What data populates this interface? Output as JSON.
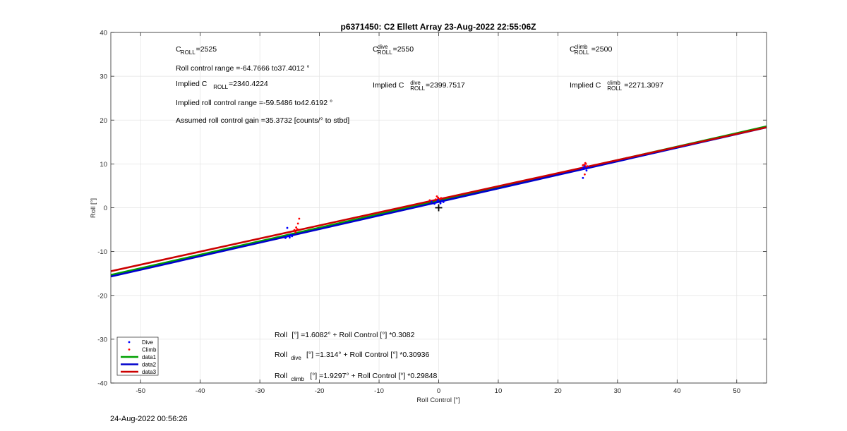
{
  "chart_data": {
    "type": "scatter",
    "title": "p6371450: C2 Ellett Array 23-Aug-2022 22:55:06Z",
    "xlabel": "Roll Control [°]",
    "ylabel": "Roll [°]",
    "xlim": [
      -55,
      55
    ],
    "ylim": [
      -40,
      40
    ],
    "xticks": [
      -50,
      -40,
      -30,
      -20,
      -10,
      0,
      10,
      20,
      30,
      40,
      50
    ],
    "yticks": [
      -40,
      -30,
      -20,
      -10,
      0,
      10,
      20,
      30,
      40
    ],
    "xtick_labels": [
      "-50",
      "-40",
      "-30",
      "-20",
      "-10",
      "0",
      "10",
      "20",
      "30",
      "40",
      "50"
    ],
    "ytick_labels": [
      "-40",
      "-30",
      "-20",
      "-10",
      "0",
      "10",
      "20",
      "30",
      "40"
    ],
    "grid": true,
    "legend_position": "bottom-left",
    "series": [
      {
        "name": "Dive",
        "kind": "points",
        "color": "#0000ff",
        "points": [
          [
            -25.5,
            -6.6
          ],
          [
            -25.2,
            -6.4
          ],
          [
            -25.0,
            -6.8
          ],
          [
            -24.8,
            -6.2
          ],
          [
            -25.4,
            -4.6
          ],
          [
            -24.6,
            -6.5
          ],
          [
            -25.7,
            -6.9
          ],
          [
            -0.5,
            1.2
          ],
          [
            -0.2,
            1.5
          ],
          [
            0.0,
            1.8
          ],
          [
            0.3,
            1.0
          ],
          [
            0.8,
            1.3
          ],
          [
            -1.2,
            1.4
          ],
          [
            -0.7,
            0.9
          ],
          [
            0.5,
            1.6
          ],
          [
            24.0,
            8.8
          ],
          [
            24.3,
            9.2
          ],
          [
            24.5,
            9.6
          ],
          [
            24.8,
            8.5
          ],
          [
            24.2,
            6.8
          ],
          [
            24.6,
            9.0
          ],
          [
            25.0,
            9.3
          ]
        ]
      },
      {
        "name": "Climb",
        "kind": "points",
        "color": "#ff0000",
        "points": [
          [
            -23.6,
            -3.6
          ],
          [
            -23.4,
            -2.5
          ],
          [
            -23.9,
            -4.5
          ],
          [
            -24.2,
            -5.1
          ],
          [
            -24.0,
            -5.6
          ],
          [
            -23.7,
            -4.9
          ],
          [
            -0.3,
            2.6
          ],
          [
            -0.1,
            2.3
          ],
          [
            0.2,
            2.0
          ],
          [
            -0.5,
            1.9
          ],
          [
            -1.5,
            1.7
          ],
          [
            0.4,
            2.2
          ],
          [
            24.4,
            9.8
          ],
          [
            24.7,
            10.0
          ],
          [
            24.5,
            7.6
          ],
          [
            24.9,
            9.5
          ],
          [
            24.2,
            9.7
          ],
          [
            24.6,
            10.2
          ]
        ]
      },
      {
        "name": "data1",
        "kind": "line",
        "color": "#00a000",
        "intercept": 1.6082,
        "slope": 0.3082
      },
      {
        "name": "data2",
        "kind": "line",
        "color": "#0000cc",
        "intercept": 1.314,
        "slope": 0.30936
      },
      {
        "name": "data3",
        "kind": "line",
        "color": "#cc0000",
        "intercept": 1.9297,
        "slope": 0.29848
      }
    ],
    "markers": [
      {
        "name": "origin-cross",
        "x": 0,
        "y": 0
      }
    ],
    "annotations": {
      "c_roll": {
        "base": "C",
        "sub": "ROLL",
        "sup": "",
        "rest": "=2525"
      },
      "roll_range": "Roll control range =-64.7666 to37.4012 °",
      "implied_c_roll": {
        "pre": "Implied C",
        "sub": "ROLL",
        "sup": "",
        "rest": "=2340.4224"
      },
      "implied_range": "Implied roll control range =-59.5486 to42.6192 °",
      "gain": "Assumed roll control gain =35.3732 [counts/° to stbd]",
      "c_dive": {
        "base": "C",
        "sub": "ROLL",
        "sup": "dive",
        "rest": "=2550"
      },
      "implied_c_dive": {
        "pre": "Implied C",
        "sub": "ROLL",
        "sup": "dive",
        "rest": "=2399.7517"
      },
      "c_climb": {
        "base": "C",
        "sub": "ROLL",
        "sup": "climb",
        "rest": "=2500"
      },
      "implied_c_climb": {
        "pre": "Implied C",
        "sub": "ROLL",
        "sup": "climb",
        "rest": "=2271.3097"
      },
      "eq_all": {
        "pre": "Roll",
        "sub": "",
        "rest": " [°] =1.6082° + Roll Control [°] *0.3082"
      },
      "eq_dive": {
        "pre": "Roll",
        "sub": "dive",
        "rest": " [°] =1.314° + Roll Control [°] *0.30936"
      },
      "eq_climb": {
        "pre": "Roll",
        "sub": "climb",
        "rest": " [°] =1.9297° + Roll Control [°] *0.29848"
      }
    }
  },
  "footer": {
    "timestamp": "24-Aug-2022 00:56:26"
  }
}
